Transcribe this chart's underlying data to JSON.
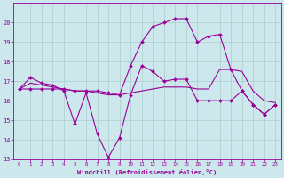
{
  "xlabel": "Windchill (Refroidissement éolien,°C)",
  "background_color": "#cce8ec",
  "grid_color": "#aacccc",
  "line_color": "#990099",
  "xlim": [
    -0.5,
    23.5
  ],
  "ylim": [
    13,
    21
  ],
  "yticks": [
    13,
    14,
    15,
    16,
    17,
    18,
    19,
    20
  ],
  "xticks": [
    0,
    1,
    2,
    3,
    4,
    5,
    6,
    7,
    8,
    9,
    10,
    11,
    12,
    13,
    14,
    15,
    16,
    17,
    18,
    19,
    20,
    21,
    22,
    23
  ],
  "line1_x": [
    0,
    1,
    2,
    3,
    4,
    5,
    6,
    7,
    8,
    9,
    10,
    11,
    12,
    13,
    14,
    15,
    16,
    17,
    18,
    19,
    20,
    21,
    22,
    23
  ],
  "line1_y": [
    16.6,
    17.2,
    16.9,
    16.8,
    16.5,
    14.8,
    16.4,
    14.3,
    13.1,
    14.1,
    16.3,
    17.8,
    17.5,
    17.0,
    17.1,
    17.1,
    16.0,
    16.0,
    16.0,
    16.0,
    16.5,
    15.8,
    15.3,
    15.8
  ],
  "line2_x": [
    0,
    1,
    2,
    3,
    4,
    5,
    6,
    7,
    8,
    9,
    10,
    11,
    12,
    13,
    14,
    15,
    16,
    17,
    18,
    19,
    20,
    21,
    22,
    23
  ],
  "line2_y": [
    16.6,
    16.6,
    16.6,
    16.6,
    16.6,
    16.5,
    16.5,
    16.5,
    16.4,
    16.3,
    17.8,
    19.0,
    19.8,
    20.0,
    20.2,
    20.2,
    19.0,
    19.3,
    19.4,
    17.6,
    16.5,
    15.8,
    15.3,
    15.8
  ],
  "line3_x": [
    0,
    1,
    2,
    3,
    4,
    5,
    6,
    7,
    8,
    9,
    10,
    11,
    12,
    13,
    14,
    15,
    16,
    17,
    18,
    19,
    20,
    21,
    22,
    23
  ],
  "line3_y": [
    16.6,
    16.9,
    16.8,
    16.7,
    16.6,
    16.5,
    16.5,
    16.4,
    16.3,
    16.3,
    16.4,
    16.5,
    16.6,
    16.7,
    16.7,
    16.7,
    16.6,
    16.6,
    17.6,
    17.6,
    17.5,
    16.5,
    16.0,
    15.9
  ]
}
